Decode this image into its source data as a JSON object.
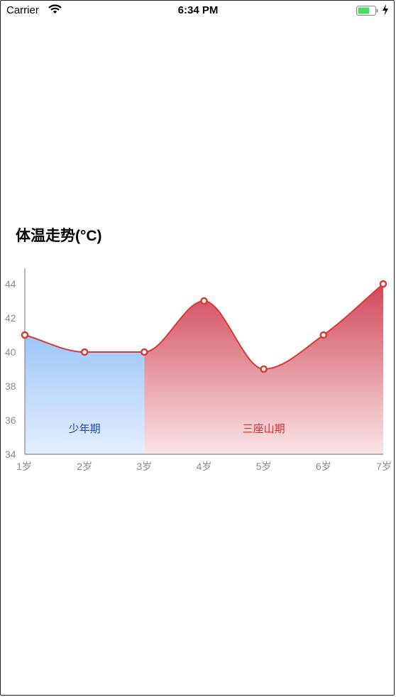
{
  "status_bar": {
    "carrier": "Carrier",
    "time": "6:34 PM",
    "wifi_icon": "wifi-icon",
    "battery_icon": "battery-icon",
    "charging_icon": "charging-bolt-icon"
  },
  "chart_data": {
    "type": "area",
    "title": "体温走势(°C)",
    "categories": [
      "1岁",
      "2岁",
      "3岁",
      "4岁",
      "5岁",
      "6岁",
      "7岁"
    ],
    "values": [
      41,
      40,
      40,
      43,
      39,
      41,
      44
    ],
    "ylim": [
      34,
      45
    ],
    "yticks": [
      34,
      36,
      38,
      40,
      42,
      44
    ],
    "xlabel": "",
    "ylabel": "",
    "grid": false,
    "line_color": "#d83a34",
    "regions": [
      {
        "label": "少年期",
        "from": "1岁",
        "to": "3岁",
        "color_top": "#7fb4f5",
        "color_bottom": "#e3efff",
        "text_color": "#1c44c8"
      },
      {
        "label": "三座山期",
        "from": "3岁",
        "to": "7岁",
        "color_top": "#d2485a",
        "color_bottom": "#f9e5e8",
        "text_color": "#d8302a"
      }
    ]
  }
}
